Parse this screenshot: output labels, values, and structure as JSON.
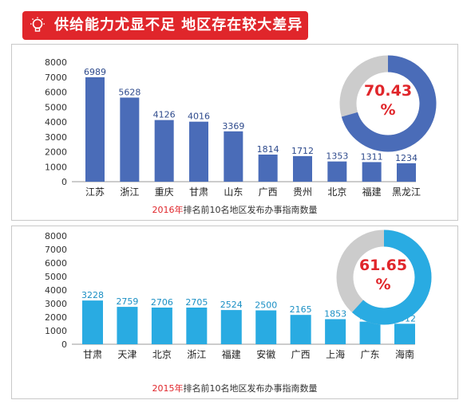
{
  "banner": {
    "title": "供给能力尤显不足  地区存在较大差异",
    "icon": "lightbulb-icon",
    "color": "#e0262b"
  },
  "colors": {
    "chart1_bar": "#4a6cb8",
    "chart2_bar": "#29abe2",
    "donut_rest": "#cccccc",
    "highlight": "#e0262b"
  },
  "chart_data": [
    {
      "type": "bar",
      "categories": [
        "江苏",
        "浙江",
        "重庆",
        "甘肃",
        "山东",
        "广西",
        "贵州",
        "北京",
        "福建",
        "黑龙江"
      ],
      "values": [
        6989,
        5628,
        4126,
        4016,
        3369,
        1814,
        1712,
        1353,
        1311,
        1234
      ],
      "yticks": [
        0,
        1000,
        2000,
        3000,
        4000,
        5000,
        6000,
        7000,
        8000
      ],
      "ylim": [
        0,
        8000
      ],
      "caption_year": "2016年",
      "caption_rest": "排名前10名地区发布办事指南数量",
      "donut": {
        "value": 70.43,
        "label_number": "70.43",
        "label_unit": "%"
      }
    },
    {
      "type": "bar",
      "categories": [
        "甘肃",
        "天津",
        "北京",
        "浙江",
        "福建",
        "安徽",
        "广西",
        "上海",
        "广东",
        "海南"
      ],
      "values": [
        3228,
        2759,
        2706,
        2705,
        2524,
        2500,
        2165,
        1853,
        1668,
        1512
      ],
      "yticks": [
        0,
        1000,
        2000,
        3000,
        4000,
        5000,
        6000,
        7000,
        8000
      ],
      "ylim": [
        0,
        8000
      ],
      "caption_year": "2015年",
      "caption_rest": "排名前10名地区发布办事指南数量",
      "donut": {
        "value": 61.65,
        "label_number": "61.65",
        "label_unit": "%"
      }
    }
  ]
}
